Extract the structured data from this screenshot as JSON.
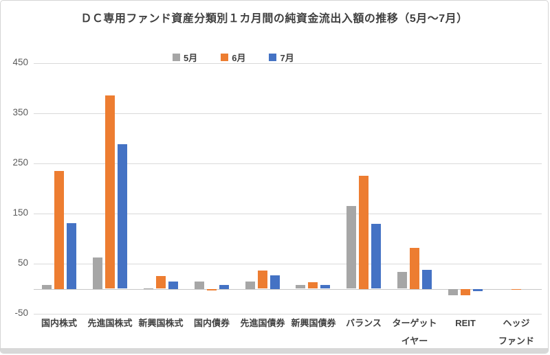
{
  "chart_data": {
    "type": "bar",
    "title": "ＤＣ専用ファンド資産分類別１カ月間の純資金流出入額の推移（5月～7月）",
    "categories": [
      "国内株式",
      "先進国株式",
      "新興国株式",
      "国内債券",
      "先進国債券",
      "新興国債券",
      "バランス",
      "ターゲット\nイヤー",
      "REIT",
      "ヘッジ\nファンド"
    ],
    "series": [
      {
        "name": "5月",
        "color": "#A6A6A6",
        "values": [
          8,
          63,
          1,
          15,
          15,
          7,
          165,
          33,
          -12,
          0
        ]
      },
      {
        "name": "6月",
        "color": "#ED7D31",
        "values": [
          235,
          385,
          25,
          -3,
          36,
          13,
          226,
          82,
          -13,
          -2
        ]
      },
      {
        "name": "7月",
        "color": "#4472C4",
        "values": [
          131,
          288,
          15,
          8,
          27,
          7,
          129,
          38,
          -4,
          0
        ]
      }
    ],
    "xlabel": "",
    "ylabel": "",
    "ylim": [
      -50,
      450
    ],
    "yticks": [
      450,
      350,
      250,
      150,
      50,
      -50
    ],
    "grid": true,
    "legend_position": "top"
  },
  "colors": {
    "gridline": "#d9d9d9",
    "zero_axis": "#c6c6c6",
    "tick_text": "#595959",
    "title_text": "#3f3f3f"
  }
}
